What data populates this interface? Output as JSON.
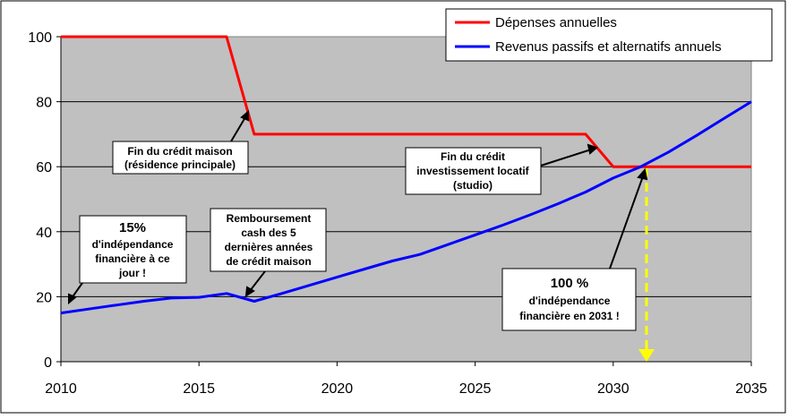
{
  "chart_data": {
    "type": "line",
    "title": "",
    "xlabel": "",
    "ylabel": "",
    "xlim": [
      2010,
      2035
    ],
    "ylim": [
      0,
      100
    ],
    "x_ticks": [
      "2010",
      "2015",
      "2020",
      "2025",
      "2030",
      "2035"
    ],
    "y_ticks": [
      "0",
      "20",
      "40",
      "60",
      "80",
      "100"
    ],
    "grid": true,
    "legend_position": "top-right",
    "series": [
      {
        "name": "Dépenses annuelles",
        "color": "#ff0000",
        "x": [
          2010,
          2016,
          2017,
          2018,
          2029,
          2030,
          2035
        ],
        "y": [
          100,
          100,
          70,
          70,
          70,
          60,
          60
        ]
      },
      {
        "name": "Revenus passifs et alternatifs annuels",
        "color": "#0000ff",
        "x": [
          2010,
          2011,
          2012,
          2013,
          2014,
          2015,
          2016,
          2017,
          2018,
          2019,
          2020,
          2021,
          2022,
          2023,
          2024,
          2025,
          2026,
          2027,
          2028,
          2029,
          2030,
          2031,
          2032,
          2033,
          2034,
          2035
        ],
        "y": [
          15,
          16.2,
          17.4,
          18.6,
          19.6,
          19.8,
          21,
          18.6,
          21,
          23.5,
          26,
          28.5,
          31,
          33,
          36,
          39,
          42,
          45.2,
          48.6,
          52.2,
          56.5,
          60,
          64.5,
          69.5,
          74.8,
          80
        ]
      }
    ],
    "annotations": [
      {
        "lines": [
          "Fin du crédit maison",
          "(résidence principale)"
        ]
      },
      {
        "lines": [
          "Fin du crédit",
          "investissement locatif",
          "(studio)"
        ]
      },
      {
        "lines": [
          "Remboursement",
          "cash des 5",
          "dernières années",
          "de crédit maison"
        ]
      },
      {
        "big": "15%",
        "lines": [
          "d'indépendance",
          "financière à ce",
          "jour !"
        ]
      },
      {
        "big": "100 %",
        "lines": [
          "d'indépendance",
          "financière en 2031 !"
        ]
      }
    ],
    "colors": {
      "plot_background": "#c0c0c0",
      "grid": "#000000",
      "marker_dashed": "#ffff00"
    }
  }
}
